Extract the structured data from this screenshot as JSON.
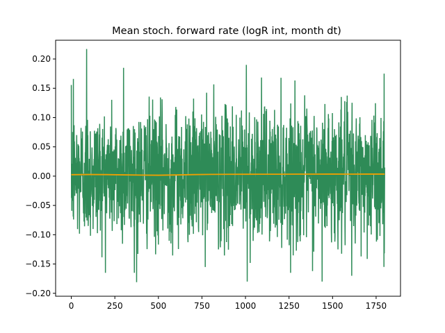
{
  "chart_data": {
    "type": "line",
    "title": "Mean stoch. forward rate (logR int, month dt)",
    "xlabel": "",
    "ylabel": "",
    "xlim": [
      -90,
      1890
    ],
    "ylim": [
      -0.205,
      0.232
    ],
    "x_ticks": [
      0,
      250,
      500,
      750,
      1000,
      1250,
      1500,
      1750
    ],
    "x_tick_labels": [
      "0",
      "250",
      "500",
      "750",
      "1000",
      "1250",
      "1500",
      "1750"
    ],
    "y_ticks": [
      -0.2,
      -0.15,
      -0.1,
      -0.05,
      0.0,
      0.05,
      0.1,
      0.15,
      0.2
    ],
    "y_tick_labels": [
      "−0.20",
      "−0.15",
      "−0.10",
      "−0.05",
      "0.00",
      "0.05",
      "0.10",
      "0.15",
      "0.20"
    ],
    "grid": false,
    "legend": "none",
    "series": [
      {
        "color": "#2e8b57",
        "n_points": 1800,
        "x_range": [
          0,
          1799
        ],
        "mean": 0.003,
        "typical_range": [
          -0.12,
          0.13
        ],
        "extremes": [
          {
            "x": 88,
            "y": 0.217
          },
          {
            "x": 12,
            "y": 0.166
          },
          {
            "x": 300,
            "y": 0.185
          },
          {
            "x": 1005,
            "y": 0.19
          },
          {
            "x": 375,
            "y": -0.181
          },
          {
            "x": 1010,
            "y": -0.18
          },
          {
            "x": 1440,
            "y": -0.18
          },
          {
            "x": 1610,
            "y": -0.17
          },
          {
            "x": 1795,
            "y": -0.155
          }
        ]
      },
      {
        "color": "#f0a000",
        "x": [
          0,
          100,
          200,
          300,
          400,
          500,
          600,
          700,
          800,
          900,
          1000,
          1100,
          1200,
          1300,
          1400,
          1500,
          1600,
          1700,
          1799
        ],
        "y": [
          0.0025,
          0.0028,
          0.0026,
          0.0022,
          0.0018,
          0.0016,
          0.002,
          0.0026,
          0.003,
          0.0031,
          0.0032,
          0.0033,
          0.0033,
          0.0034,
          0.0034,
          0.0035,
          0.0034,
          0.0035,
          0.0035
        ]
      }
    ]
  }
}
